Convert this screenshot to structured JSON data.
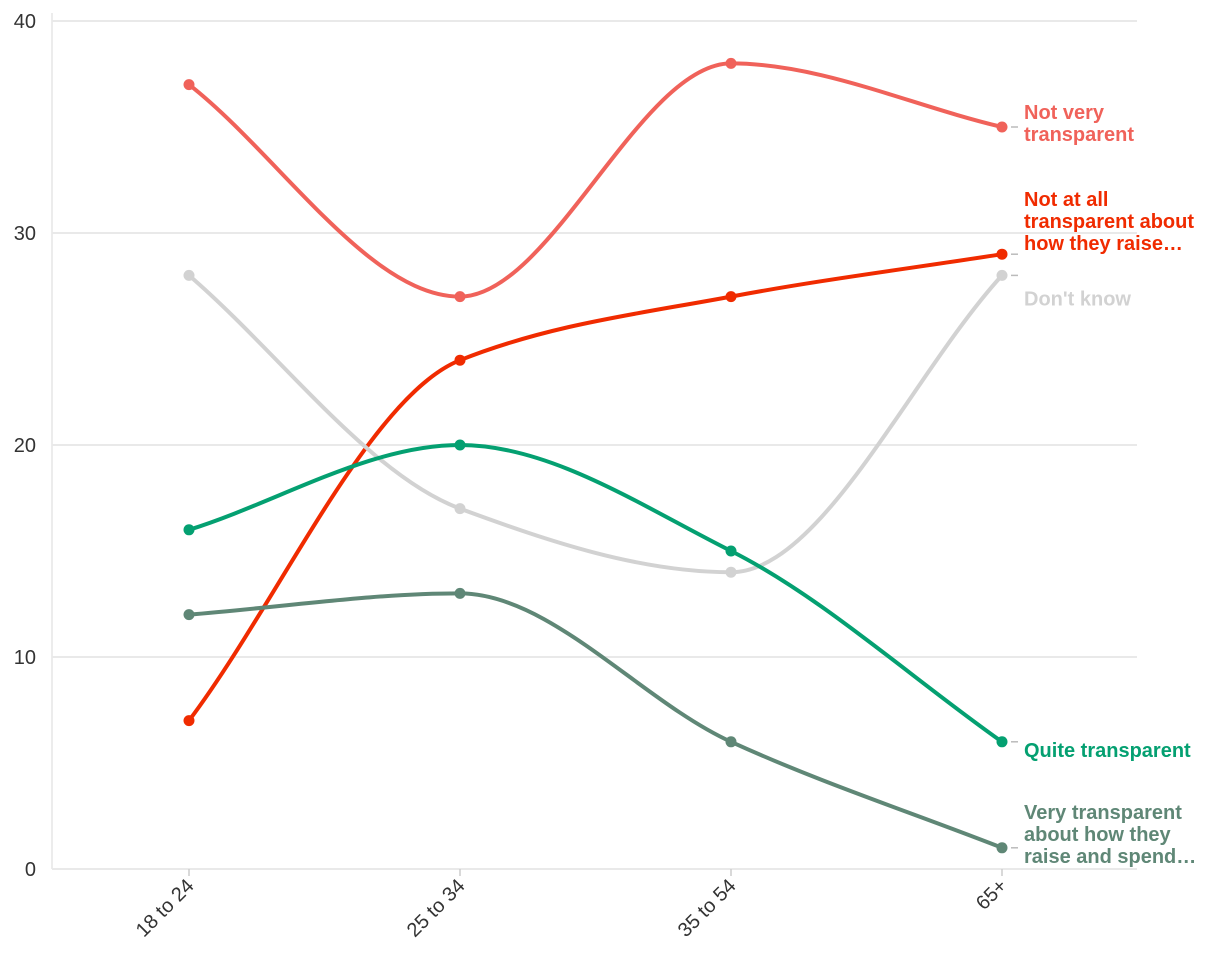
{
  "chart_data": {
    "type": "line",
    "title": "",
    "xlabel": "",
    "ylabel": "",
    "categories": [
      "18 to 24",
      "25 to 34",
      "35 to 54",
      "65+"
    ],
    "ylim": [
      0,
      40
    ],
    "yticks": [
      0,
      10,
      20,
      30,
      40
    ],
    "grid": true,
    "legend": "direct labels at line ends (right)",
    "series": [
      {
        "name": "Not very transparent",
        "color": "#f0625a",
        "values": [
          37,
          27,
          38,
          35
        ],
        "label_lines": [
          "Not very",
          "transparent"
        ]
      },
      {
        "name": "Not at all transparent about how they raise…",
        "color": "#f02b00",
        "values": [
          7,
          24,
          27,
          29
        ],
        "label_lines": [
          "Not at all",
          "transparent about",
          "how they raise…"
        ]
      },
      {
        "name": "Don't know",
        "color": "#d2d2d2",
        "values": [
          28,
          17,
          14,
          28
        ],
        "label_lines": [
          "Don't know"
        ]
      },
      {
        "name": "Quite transparent",
        "color": "#04a071",
        "values": [
          16,
          20,
          15,
          6
        ],
        "label_lines": [
          "Quite transparent"
        ]
      },
      {
        "name": "Very transparent about how they raise and spend…",
        "color": "#5f8776",
        "values": [
          12,
          13,
          6,
          1
        ],
        "label_lines": [
          "Very transparent",
          "about how they",
          "raise and spend…"
        ]
      }
    ]
  }
}
